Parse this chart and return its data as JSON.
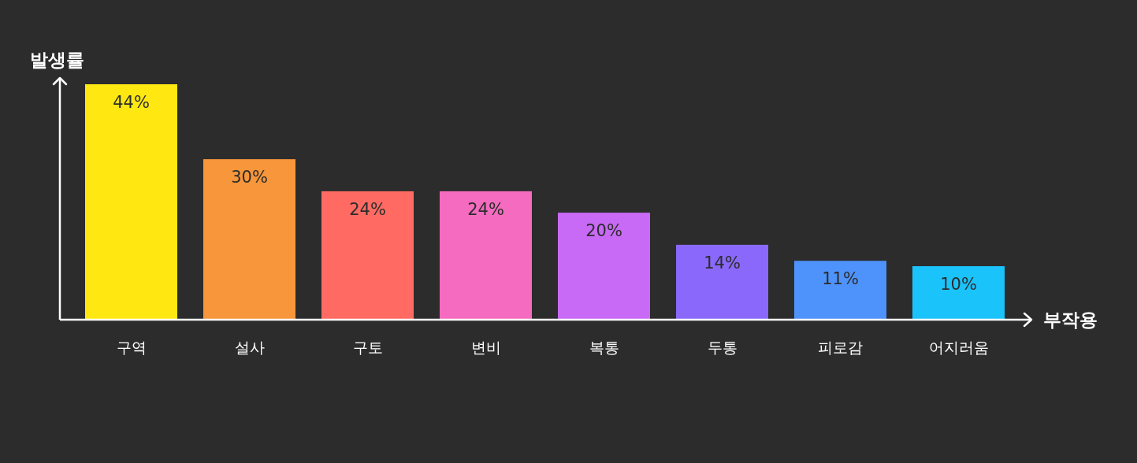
{
  "chart_data": {
    "type": "bar",
    "xlabel": "부작용",
    "ylabel": "발생률",
    "categories": [
      "구역",
      "설사",
      "구토",
      "변비",
      "복통",
      "두통",
      "피로감",
      "어지러움"
    ],
    "values": [
      44,
      30,
      24,
      24,
      20,
      14,
      11,
      10
    ],
    "value_labels": [
      "44%",
      "30%",
      "24%",
      "24%",
      "20%",
      "14%",
      "11%",
      "10%"
    ],
    "colors": [
      "#ffe812",
      "#f7963a",
      "#ff6b63",
      "#f46bbf",
      "#c86af5",
      "#8a68fb",
      "#4e93fb",
      "#1bc3fb"
    ]
  }
}
